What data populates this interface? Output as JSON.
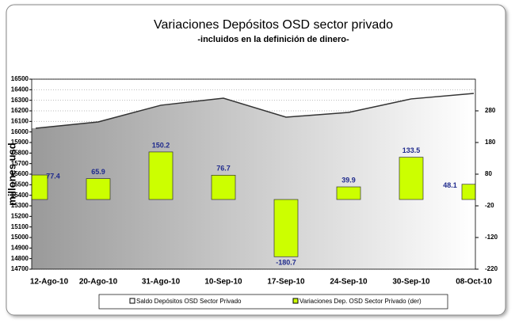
{
  "chart_data": {
    "type": "combo",
    "title": "Variaciones Depósitos OSD sector privado",
    "subtitle": "-incluidos en la definición de dinero-",
    "y_label": "millones usd",
    "categories": [
      "12-Ago-10",
      "20-Ago-10",
      "31-Ago-10",
      "10-Sep-10",
      "17-Sep-10",
      "24-Sep-10",
      "30-Sep-10",
      "08-Oct-10"
    ],
    "series": [
      {
        "name": "Saldo Depósitos OSD Sector Privado",
        "type": "area",
        "color": "#333333",
        "values": [
          16035,
          16095,
          16253,
          16320,
          16140,
          16185,
          16313,
          16365
        ]
      },
      {
        "name": "Variaciones Dep. OSD Sector Privado (der)",
        "type": "bar",
        "axis": "y2",
        "color": "#ccff00",
        "values": [
          77.4,
          65.9,
          150.2,
          76.7,
          -180.7,
          39.9,
          133.5,
          48.1
        ]
      }
    ],
    "ylim": [
      14700,
      16500
    ],
    "yticks": [
      14700,
      14800,
      14900,
      15000,
      15100,
      15200,
      15300,
      15400,
      15500,
      15600,
      15700,
      15800,
      15900,
      16000,
      16100,
      16200,
      16300,
      16400,
      16500
    ],
    "y2lim": [
      -220,
      380
    ],
    "y2ticks": [
      -220,
      -120,
      -20,
      80,
      180,
      280
    ],
    "grid": true
  }
}
